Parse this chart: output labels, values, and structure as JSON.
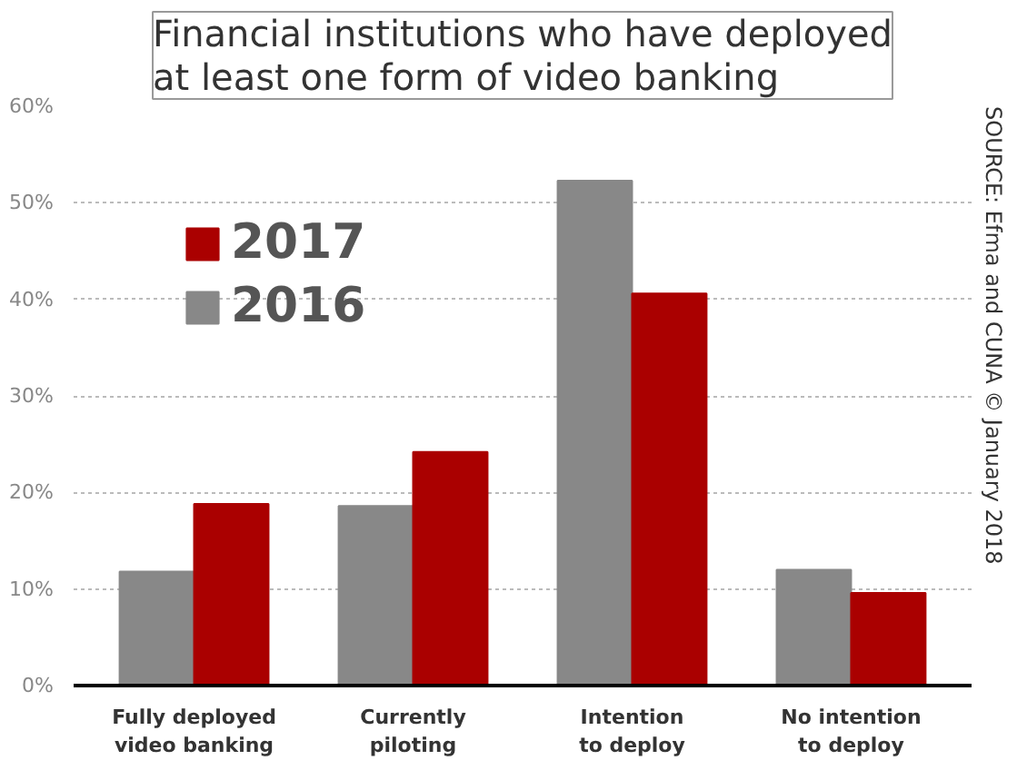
{
  "chart_data": {
    "type": "bar",
    "title": "Financial institutions who have deployed\nat least one form of video banking",
    "categories": [
      "Fully deployed\nvideo banking",
      "Currently\npiloting",
      "Intention\nto deploy",
      "No intention\nto deploy"
    ],
    "series": [
      {
        "name": "2016",
        "color": "#888888",
        "values": [
          11.8,
          18.6,
          52.3,
          12.0
        ]
      },
      {
        "name": "2017",
        "color": "#aa0000",
        "values": [
          18.8,
          24.2,
          40.6,
          9.6
        ]
      }
    ],
    "ylim": [
      0,
      60
    ],
    "yticks": [
      {
        "value": 0,
        "label": "0%"
      },
      {
        "value": 10,
        "label": "10%"
      },
      {
        "value": 20,
        "label": "20%"
      },
      {
        "value": 30,
        "label": "30%"
      },
      {
        "value": 40,
        "label": "40%"
      },
      {
        "value": 50,
        "label": "50%"
      },
      {
        "value": 60,
        "label": "60%"
      }
    ],
    "grid": "y",
    "legend": "top left",
    "annotations": [
      "SOURCE: Efma and CUNA © January 2018"
    ]
  }
}
